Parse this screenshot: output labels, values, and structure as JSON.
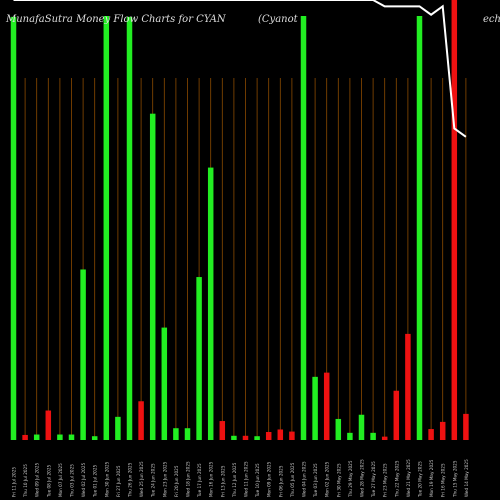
{
  "title": {
    "left": "MunafaSutra  Money Flow  Charts for CYAN",
    "middle": "(Cyanot",
    "right": "ech C"
  },
  "chart_data": {
    "type": "bar",
    "title": "MunafaSutra  Money Flow  Charts for CYAN (Cyanotech C",
    "ylim": [
      0,
      100
    ],
    "grid": true,
    "colors": {
      "up": "#22ee22",
      "down": "#ee1111",
      "grid": "#8a4a00",
      "line": "#ffffff"
    },
    "categories": [
      "Fri 11 Jul 2025",
      "Thu 10 Jul 2025",
      "Wed 09 Jul 2025",
      "Tue 08 Jul 2025",
      "Mon 07 Jul 2025",
      "Thu 03 Jul 2025",
      "Wed 02 Jul 2025",
      "Tue 01 Jul 2025",
      "Mon 30 Jun 2025",
      "Fri 27 Jun 2025",
      "Thu 26 Jun 2025",
      "Wed 25 Jun 2025",
      "Tue 24 Jun 2025",
      "Mon 23 Jun 2025",
      "Fri 20 Jun 2025",
      "Wed 18 Jun 2025",
      "Tue 17 Jun 2025",
      "Mon 16 Jun 2025",
      "Fri 13 Jun 2025",
      "Thu 12 Jun 2025",
      "Wed 11 Jun 2025",
      "Tue 10 Jun 2025",
      "Mon 09 Jun 2025",
      "Fri 06 Jun 2025",
      "Thu 05 Jun 2025",
      "Wed 04 Jun 2025",
      "Tue 03 Jun 2025",
      "Mon 02 Jun 2025",
      "Fri 30 May 2025",
      "Thu 29 May 2025",
      "Wed 28 May 2025",
      "Tue 27 May 2025",
      "Fri 23 May 2025",
      "Thu 22 May 2025",
      "Wed 21 May 2025",
      "Tue 20 May 2025",
      "Mon 19 May 2025",
      "Fri 16 May 2025",
      "Thu 15 May 2025",
      "Wed 14 May 2025"
    ],
    "values": [
      100.5,
      1.2,
      1.3,
      7.0,
      1.3,
      1.3,
      40.5,
      0.9,
      100.7,
      5.5,
      100.5,
      9.2,
      77.5,
      26.7,
      2.8,
      2.8,
      38.7,
      64.7,
      4.5,
      1.0,
      1.0,
      0.9,
      1.9,
      2.5,
      2.0,
      100.7,
      15.0,
      16.0,
      5.0,
      1.7,
      6.0,
      1.7,
      0.8,
      11.7,
      25.2,
      100.7,
      2.6,
      4.3,
      104.5,
      6.2
    ],
    "directions": [
      "up",
      "down",
      "up",
      "down",
      "up",
      "up",
      "up",
      "up",
      "up",
      "up",
      "up",
      "down",
      "up",
      "up",
      "up",
      "up",
      "up",
      "up",
      "down",
      "up",
      "down",
      "up",
      "down",
      "down",
      "down",
      "up",
      "up",
      "down",
      "up",
      "up",
      "up",
      "up",
      "down",
      "down",
      "down",
      "up",
      "down",
      "down",
      "down",
      "down"
    ],
    "line": [
      124,
      126,
      121,
      121,
      121,
      121,
      121,
      121,
      121,
      121,
      121,
      121,
      121,
      121,
      121,
      121,
      121,
      121,
      121,
      121,
      121,
      121,
      121,
      121,
      121,
      121,
      121,
      121,
      121,
      121,
      121,
      121,
      103,
      103,
      103,
      103,
      101,
      103,
      74,
      72
    ]
  }
}
